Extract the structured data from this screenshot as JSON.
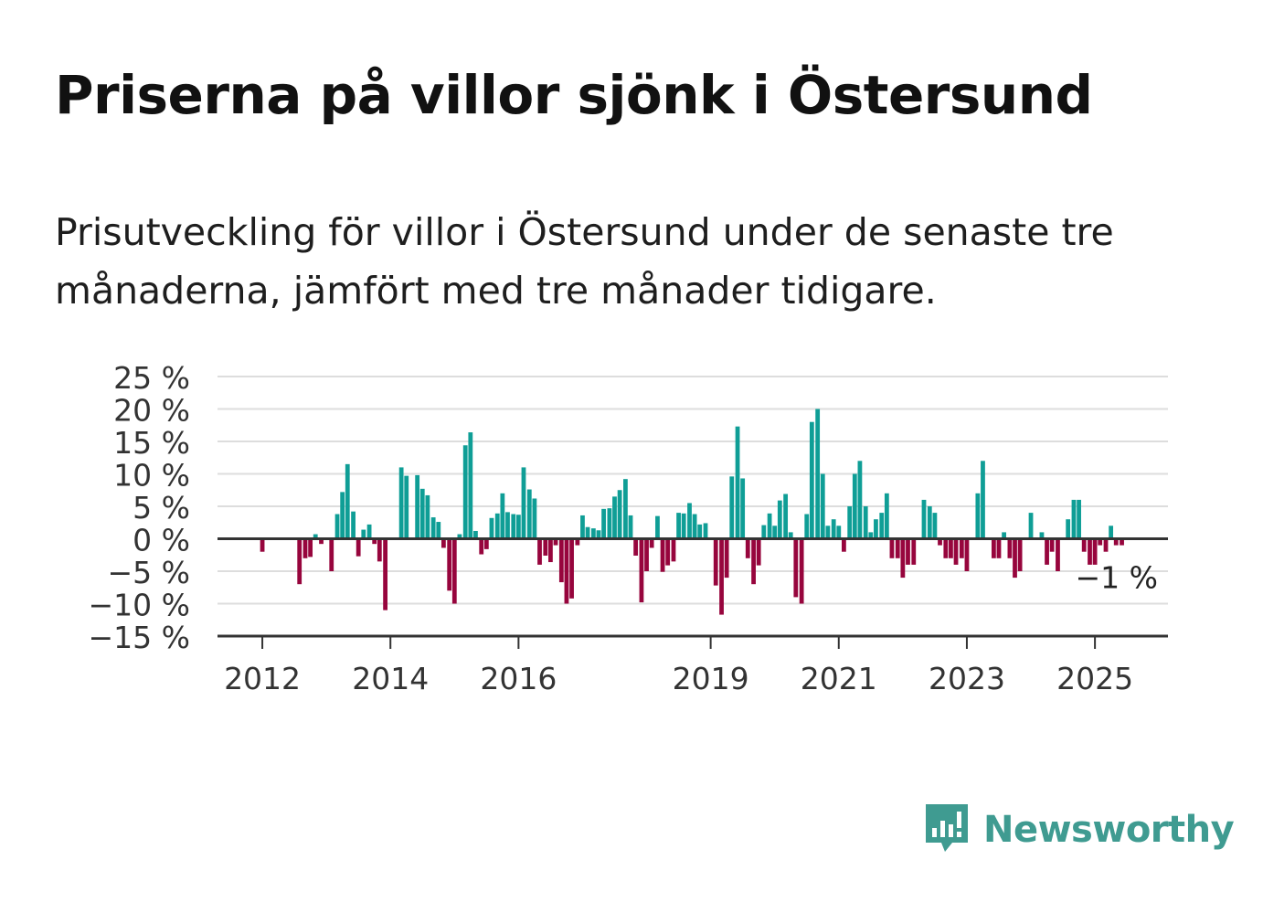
{
  "header": {
    "title": "Priserna på villor sjönk i Östersund",
    "subtitle": "Prisutveckling för villor i Östersund under de senaste tre månaderna, jämfört med tre månader tidigare."
  },
  "branding": {
    "name": "Newsworthy",
    "icon": "newsworthy-logo-icon",
    "color": "#3f9b91"
  },
  "colors": {
    "positive": "#0f9e96",
    "negative": "#97053d",
    "grid": "#dddddd",
    "axis": "#333333"
  },
  "chart_data": {
    "type": "bar",
    "title": "Priserna på villor sjönk i Östersund",
    "xlabel": "",
    "ylabel": "",
    "ylim": [
      -15,
      25
    ],
    "y_ticks": [
      {
        "value": 25,
        "label": "25 %"
      },
      {
        "value": 20,
        "label": "20 %"
      },
      {
        "value": 15,
        "label": "15 %"
      },
      {
        "value": 10,
        "label": "10 %"
      },
      {
        "value": 5,
        "label": "5 %"
      },
      {
        "value": 0,
        "label": "0 %"
      },
      {
        "value": -5,
        "label": "−5 %"
      },
      {
        "value": -10,
        "label": "−10 %"
      },
      {
        "value": -15,
        "label": "−15 %"
      }
    ],
    "x_ticks": [
      {
        "value": 2012,
        "label": "2012"
      },
      {
        "value": 2014,
        "label": "2014"
      },
      {
        "value": 2016,
        "label": "2016"
      },
      {
        "value": 2019,
        "label": "2019"
      },
      {
        "value": 2021,
        "label": "2021"
      },
      {
        "value": 2023,
        "label": "2023"
      },
      {
        "value": 2025,
        "label": "2025"
      }
    ],
    "xlim": [
      2011.3,
      2026.14
    ],
    "grid": true,
    "annotation": {
      "label": "−1 %",
      "value": -1
    },
    "points": [
      {
        "x": 2012.0,
        "y": -2
      },
      {
        "x": 2012.58,
        "y": -7
      },
      {
        "x": 2012.67,
        "y": -3
      },
      {
        "x": 2012.75,
        "y": -2.8
      },
      {
        "x": 2012.83,
        "y": 0.7
      },
      {
        "x": 2012.92,
        "y": -0.8
      },
      {
        "x": 2013.08,
        "y": -5
      },
      {
        "x": 2013.17,
        "y": 3.8
      },
      {
        "x": 2013.25,
        "y": 7.2
      },
      {
        "x": 2013.33,
        "y": 11.5
      },
      {
        "x": 2013.42,
        "y": 4.2
      },
      {
        "x": 2013.5,
        "y": -2.7
      },
      {
        "x": 2013.58,
        "y": 1.4
      },
      {
        "x": 2013.67,
        "y": 2.2
      },
      {
        "x": 2013.75,
        "y": -0.8
      },
      {
        "x": 2013.83,
        "y": -3.5
      },
      {
        "x": 2013.92,
        "y": -11
      },
      {
        "x": 2014.17,
        "y": 11
      },
      {
        "x": 2014.25,
        "y": 9.7
      },
      {
        "x": 2014.42,
        "y": 9.8
      },
      {
        "x": 2014.5,
        "y": 7.7
      },
      {
        "x": 2014.58,
        "y": 6.7
      },
      {
        "x": 2014.67,
        "y": 3.3
      },
      {
        "x": 2014.75,
        "y": 2.6
      },
      {
        "x": 2014.83,
        "y": -1.4
      },
      {
        "x": 2014.92,
        "y": -8
      },
      {
        "x": 2015.0,
        "y": -10
      },
      {
        "x": 2015.08,
        "y": 0.7
      },
      {
        "x": 2015.17,
        "y": 14.4
      },
      {
        "x": 2015.25,
        "y": 16.4
      },
      {
        "x": 2015.33,
        "y": 1.2
      },
      {
        "x": 2015.42,
        "y": -2.4
      },
      {
        "x": 2015.5,
        "y": -1.6
      },
      {
        "x": 2015.58,
        "y": 3.2
      },
      {
        "x": 2015.67,
        "y": 3.9
      },
      {
        "x": 2015.75,
        "y": 7
      },
      {
        "x": 2015.83,
        "y": 4.1
      },
      {
        "x": 2015.92,
        "y": 3.8
      },
      {
        "x": 2016.0,
        "y": 3.7
      },
      {
        "x": 2016.08,
        "y": 11
      },
      {
        "x": 2016.17,
        "y": 7.6
      },
      {
        "x": 2016.25,
        "y": 6.2
      },
      {
        "x": 2016.33,
        "y": -4
      },
      {
        "x": 2016.42,
        "y": -2.6
      },
      {
        "x": 2016.5,
        "y": -3.6
      },
      {
        "x": 2016.58,
        "y": -1
      },
      {
        "x": 2016.67,
        "y": -6.7
      },
      {
        "x": 2016.75,
        "y": -10
      },
      {
        "x": 2016.83,
        "y": -9.2
      },
      {
        "x": 2016.92,
        "y": -1
      },
      {
        "x": 2017.0,
        "y": 3.6
      },
      {
        "x": 2017.08,
        "y": 1.8
      },
      {
        "x": 2017.17,
        "y": 1.6
      },
      {
        "x": 2017.25,
        "y": 1.3
      },
      {
        "x": 2017.33,
        "y": 4.6
      },
      {
        "x": 2017.42,
        "y": 4.7
      },
      {
        "x": 2017.5,
        "y": 6.5
      },
      {
        "x": 2017.58,
        "y": 7.5
      },
      {
        "x": 2017.67,
        "y": 9.2
      },
      {
        "x": 2017.75,
        "y": 3.6
      },
      {
        "x": 2017.83,
        "y": -2.6
      },
      {
        "x": 2017.92,
        "y": -9.8
      },
      {
        "x": 2018.0,
        "y": -5
      },
      {
        "x": 2018.08,
        "y": -1.4
      },
      {
        "x": 2018.17,
        "y": 3.5
      },
      {
        "x": 2018.25,
        "y": -5.1
      },
      {
        "x": 2018.33,
        "y": -4.1
      },
      {
        "x": 2018.42,
        "y": -3.5
      },
      {
        "x": 2018.5,
        "y": 4
      },
      {
        "x": 2018.58,
        "y": 3.9
      },
      {
        "x": 2018.67,
        "y": 5.5
      },
      {
        "x": 2018.75,
        "y": 3.8
      },
      {
        "x": 2018.83,
        "y": 2.2
      },
      {
        "x": 2018.92,
        "y": 2.4
      },
      {
        "x": 2019.08,
        "y": -7.2
      },
      {
        "x": 2019.17,
        "y": -11.7
      },
      {
        "x": 2019.25,
        "y": -6
      },
      {
        "x": 2019.33,
        "y": 9.6
      },
      {
        "x": 2019.42,
        "y": 17.3
      },
      {
        "x": 2019.5,
        "y": 9.3
      },
      {
        "x": 2019.58,
        "y": -3
      },
      {
        "x": 2019.67,
        "y": -7
      },
      {
        "x": 2019.75,
        "y": -4.1
      },
      {
        "x": 2019.83,
        "y": 2.1
      },
      {
        "x": 2019.92,
        "y": 3.9
      },
      {
        "x": 2020.0,
        "y": 2
      },
      {
        "x": 2020.08,
        "y": 5.9
      },
      {
        "x": 2020.17,
        "y": 6.9
      },
      {
        "x": 2020.25,
        "y": 1
      },
      {
        "x": 2020.33,
        "y": -9
      },
      {
        "x": 2020.42,
        "y": -10
      },
      {
        "x": 2020.5,
        "y": 3.8
      },
      {
        "x": 2020.58,
        "y": 18
      },
      {
        "x": 2020.67,
        "y": 20
      },
      {
        "x": 2020.75,
        "y": 10
      },
      {
        "x": 2020.83,
        "y": 2
      },
      {
        "x": 2020.92,
        "y": 3
      },
      {
        "x": 2021.0,
        "y": 2
      },
      {
        "x": 2021.08,
        "y": -2
      },
      {
        "x": 2021.17,
        "y": 5
      },
      {
        "x": 2021.25,
        "y": 10
      },
      {
        "x": 2021.33,
        "y": 12
      },
      {
        "x": 2021.42,
        "y": 5
      },
      {
        "x": 2021.5,
        "y": 1
      },
      {
        "x": 2021.58,
        "y": 3
      },
      {
        "x": 2021.67,
        "y": 4
      },
      {
        "x": 2021.75,
        "y": 7
      },
      {
        "x": 2021.83,
        "y": -3
      },
      {
        "x": 2021.92,
        "y": -3
      },
      {
        "x": 2022.0,
        "y": -6
      },
      {
        "x": 2022.08,
        "y": -4
      },
      {
        "x": 2022.17,
        "y": -4
      },
      {
        "x": 2022.33,
        "y": 6
      },
      {
        "x": 2022.42,
        "y": 5
      },
      {
        "x": 2022.5,
        "y": 4
      },
      {
        "x": 2022.58,
        "y": -1
      },
      {
        "x": 2022.67,
        "y": -3
      },
      {
        "x": 2022.75,
        "y": -3
      },
      {
        "x": 2022.83,
        "y": -4
      },
      {
        "x": 2022.92,
        "y": -3
      },
      {
        "x": 2023.0,
        "y": -5
      },
      {
        "x": 2023.17,
        "y": 7
      },
      {
        "x": 2023.25,
        "y": 12
      },
      {
        "x": 2023.42,
        "y": -3
      },
      {
        "x": 2023.5,
        "y": -3
      },
      {
        "x": 2023.58,
        "y": 1
      },
      {
        "x": 2023.67,
        "y": -3
      },
      {
        "x": 2023.75,
        "y": -6
      },
      {
        "x": 2023.83,
        "y": -5
      },
      {
        "x": 2024.0,
        "y": 4
      },
      {
        "x": 2024.17,
        "y": 1
      },
      {
        "x": 2024.25,
        "y": -4
      },
      {
        "x": 2024.33,
        "y": -2
      },
      {
        "x": 2024.42,
        "y": -5
      },
      {
        "x": 2024.58,
        "y": 3
      },
      {
        "x": 2024.67,
        "y": 6
      },
      {
        "x": 2024.75,
        "y": 6
      },
      {
        "x": 2024.83,
        "y": -2
      },
      {
        "x": 2024.92,
        "y": -4
      },
      {
        "x": 2025.0,
        "y": -4
      },
      {
        "x": 2025.08,
        "y": -1
      },
      {
        "x": 2025.17,
        "y": -2
      },
      {
        "x": 2025.25,
        "y": 2
      },
      {
        "x": 2025.33,
        "y": -1
      },
      {
        "x": 2025.42,
        "y": -1
      }
    ]
  }
}
